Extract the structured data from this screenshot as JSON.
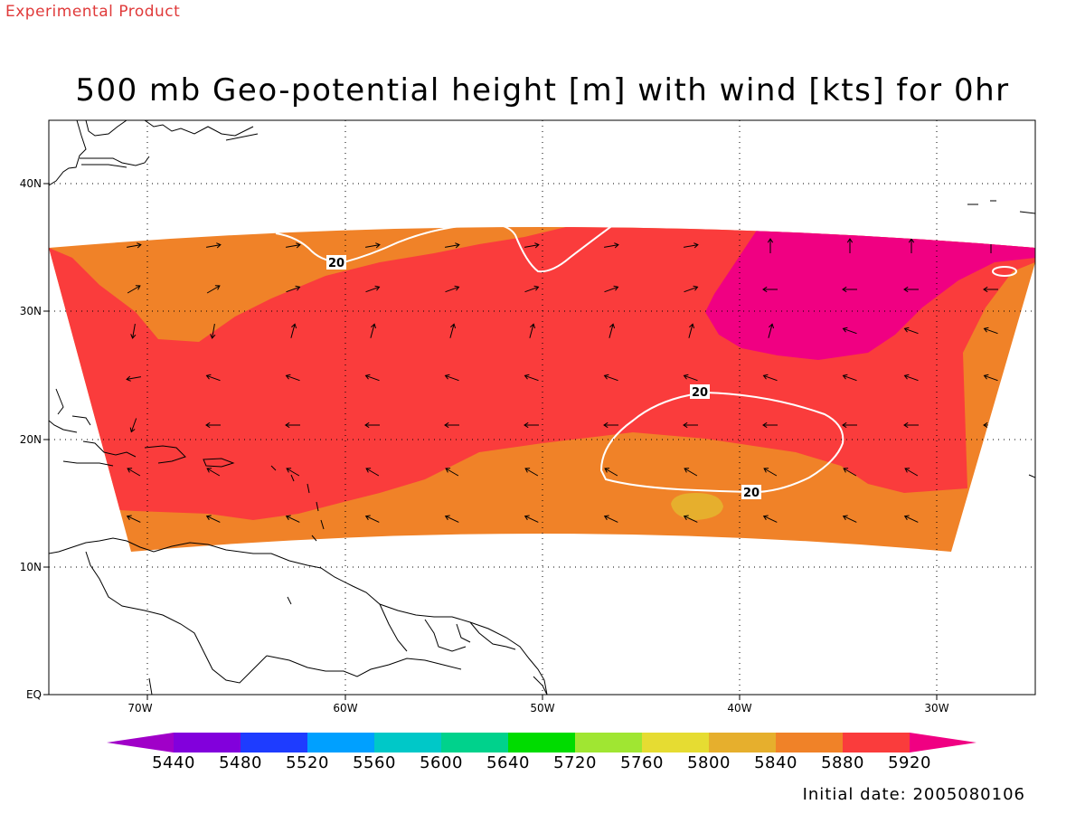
{
  "header": {
    "experimental_label": "Experimental Product",
    "title": "500 mb Geo-potential height [m] with wind [kts] for 0hr"
  },
  "map": {
    "lat_labels": [
      "40N",
      "30N",
      "20N",
      "10N",
      "EQ"
    ],
    "lon_labels": [
      "70W",
      "60W",
      "50W",
      "40W",
      "30W"
    ],
    "wind_contour_labels": [
      "20",
      "20",
      "20"
    ],
    "grid_lines": "dotted"
  },
  "colorbar": {
    "labels": [
      "5440",
      "5480",
      "5520",
      "5560",
      "5600",
      "5640",
      "5720",
      "5760",
      "5800",
      "5840",
      "5880",
      "5920"
    ],
    "colors": [
      "#a000c8",
      "#8200dc",
      "#1e3cff",
      "#00a0ff",
      "#00c8c8",
      "#00d28c",
      "#00dc00",
      "#a0e632",
      "#e6dc32",
      "#e6af2d",
      "#f08228",
      "#fa3c3c",
      "#f00082"
    ]
  },
  "footer": {
    "initial_date": "Initial date: 2005080106"
  }
}
